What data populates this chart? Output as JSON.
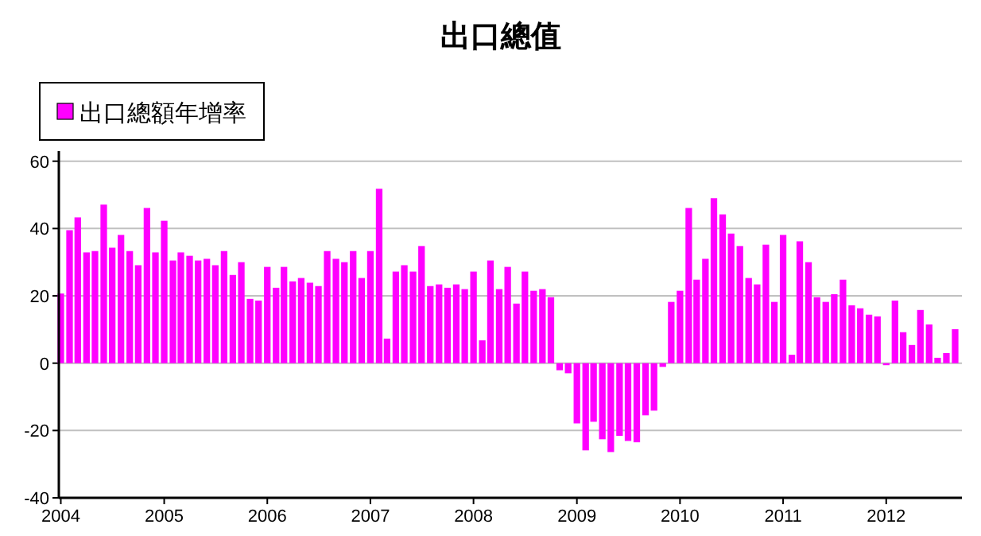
{
  "chart_data": {
    "type": "bar",
    "title": "出口總值",
    "x": [
      "2004-01",
      "2004-02",
      "2004-03",
      "2004-04",
      "2004-05",
      "2004-06",
      "2004-07",
      "2004-08",
      "2004-09",
      "2004-10",
      "2004-11",
      "2004-12",
      "2005-01",
      "2005-02",
      "2005-03",
      "2005-04",
      "2005-05",
      "2005-06",
      "2005-07",
      "2005-08",
      "2005-09",
      "2005-10",
      "2005-11",
      "2005-12",
      "2006-01",
      "2006-02",
      "2006-03",
      "2006-04",
      "2006-05",
      "2006-06",
      "2006-07",
      "2006-08",
      "2006-09",
      "2006-10",
      "2006-11",
      "2006-12",
      "2007-01",
      "2007-02",
      "2007-03",
      "2007-04",
      "2007-05",
      "2007-06",
      "2007-07",
      "2007-08",
      "2007-09",
      "2007-10",
      "2007-11",
      "2007-12",
      "2008-01",
      "2008-02",
      "2008-03",
      "2008-04",
      "2008-05",
      "2008-06",
      "2008-07",
      "2008-08",
      "2008-09",
      "2008-10",
      "2008-11",
      "2008-12",
      "2009-01",
      "2009-02",
      "2009-03",
      "2009-04",
      "2009-05",
      "2009-06",
      "2009-07",
      "2009-08",
      "2009-09",
      "2009-10",
      "2009-11",
      "2009-12",
      "2010-01",
      "2010-02",
      "2010-03",
      "2010-04",
      "2010-05",
      "2010-06",
      "2010-07",
      "2010-08",
      "2010-09",
      "2010-10",
      "2010-11",
      "2010-12",
      "2011-01",
      "2011-02",
      "2011-03",
      "2011-04",
      "2011-05",
      "2011-06",
      "2011-07",
      "2011-08",
      "2011-09",
      "2011-10",
      "2011-11",
      "2011-12",
      "2012-01",
      "2012-02",
      "2012-03",
      "2012-04",
      "2012-05",
      "2012-06",
      "2012-07",
      "2012-08",
      "2012-09"
    ],
    "series": [
      {
        "name": "出口總額年增率",
        "color": "#ff00ff",
        "values": [
          20.7,
          39.5,
          43.3,
          32.9,
          33.3,
          47.1,
          34.3,
          38.1,
          33.3,
          29.1,
          46.1,
          32.9,
          42.3,
          30.5,
          32.9,
          31.9,
          30.5,
          31.0,
          29.1,
          33.3,
          26.2,
          30.0,
          19.1,
          18.6,
          28.6,
          22.4,
          28.6,
          24.3,
          25.3,
          23.9,
          22.9,
          33.3,
          31.0,
          30.0,
          33.3,
          25.3,
          33.3,
          51.8,
          7.3,
          27.2,
          29.1,
          27.2,
          34.8,
          22.9,
          23.4,
          22.4,
          23.4,
          22.0,
          27.2,
          6.8,
          30.5,
          22.0,
          28.6,
          17.7,
          27.2,
          21.5,
          22.0,
          19.6,
          -2.1,
          -3.0,
          -17.9,
          -25.9,
          -17.4,
          -22.6,
          -26.4,
          -21.6,
          -23.1,
          -23.5,
          -15.5,
          -14.1,
          -1.1,
          18.2,
          21.5,
          46.1,
          24.8,
          31.0,
          49.0,
          44.2,
          38.5,
          34.8,
          25.3,
          23.4,
          35.2,
          18.2,
          38.1,
          2.5,
          36.2,
          30.0,
          19.6,
          18.2,
          20.5,
          24.8,
          17.2,
          16.3,
          14.4,
          13.9,
          -0.6,
          18.6,
          9.2,
          5.4,
          15.8,
          11.5,
          1.6,
          3.0,
          10.1
        ]
      }
    ],
    "xlim": [
      "2003-12-25",
      "2012-09-25"
    ],
    "xticks": [
      {
        "value": "2004-01-01",
        "label": "2004"
      },
      {
        "value": "2005-01-01",
        "label": "2005"
      },
      {
        "value": "2006-01-01",
        "label": "2006"
      },
      {
        "value": "2007-01-01",
        "label": "2007"
      },
      {
        "value": "2008-01-01",
        "label": "2008"
      },
      {
        "value": "2009-01-01",
        "label": "2009"
      },
      {
        "value": "2010-01-01",
        "label": "2010"
      },
      {
        "value": "2011-01-01",
        "label": "2011"
      },
      {
        "value": "2012-01-01",
        "label": "2012"
      }
    ],
    "ylim": [
      -40,
      63
    ],
    "yticks": [
      -40,
      -20,
      0,
      20,
      40,
      60
    ],
    "grid": "y",
    "legend": "top left"
  }
}
